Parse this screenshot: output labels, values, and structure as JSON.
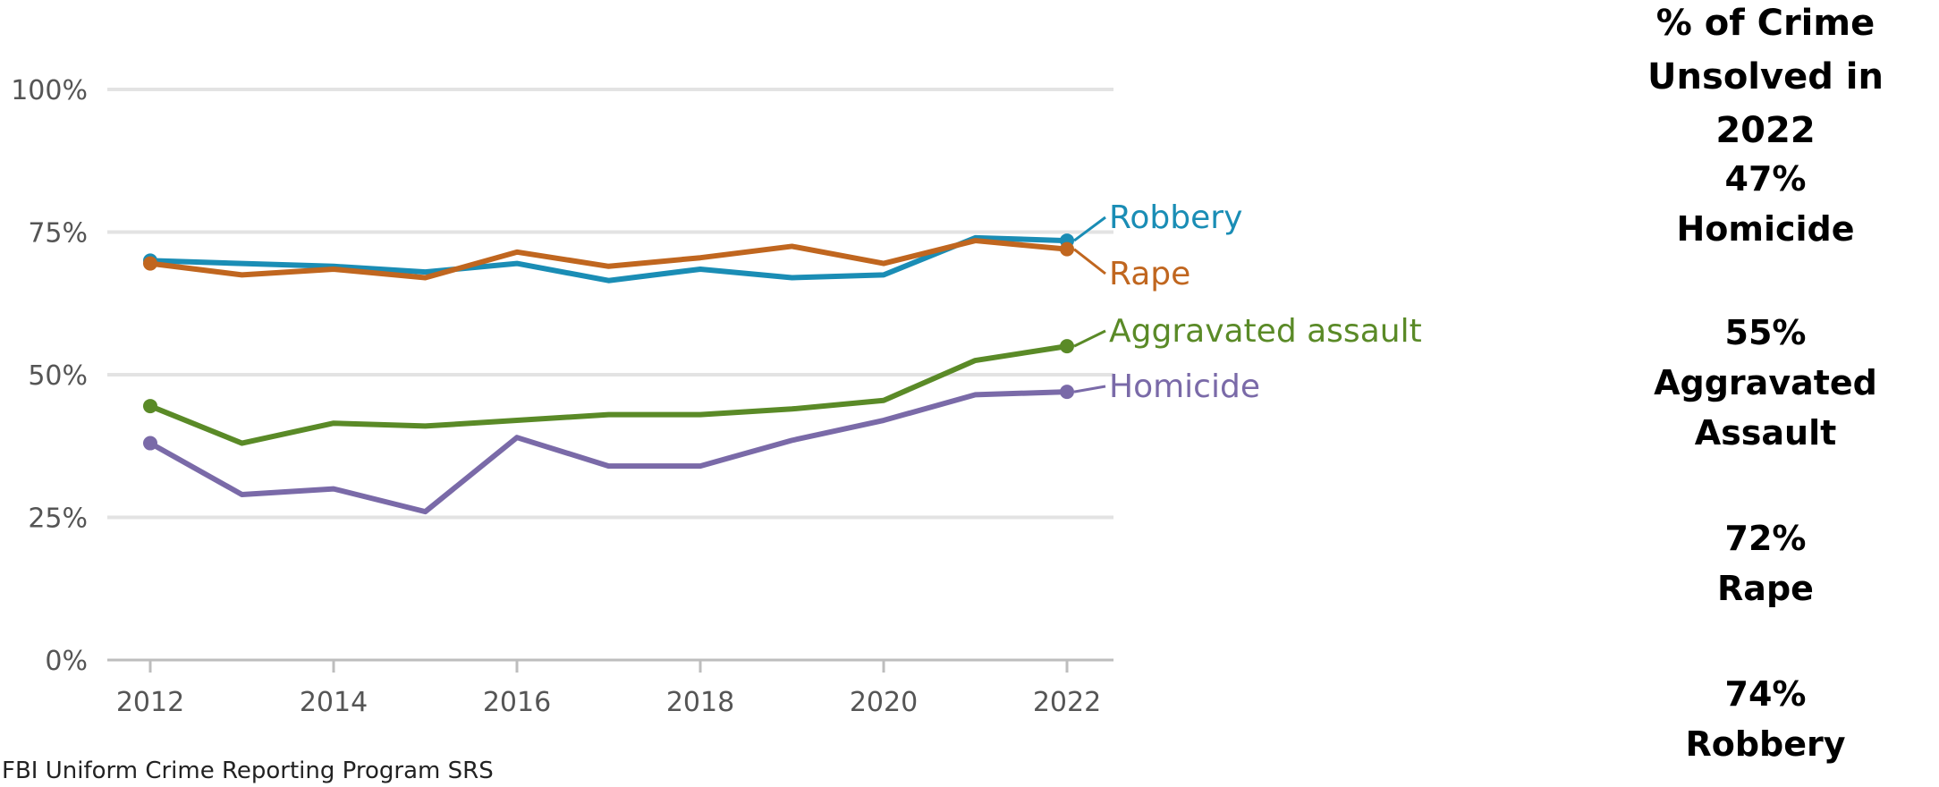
{
  "chart_data": {
    "type": "line",
    "title": "",
    "xlabel": "",
    "ylabel": "",
    "x": [
      2012,
      2013,
      2014,
      2015,
      2016,
      2017,
      2018,
      2019,
      2020,
      2021,
      2022
    ],
    "x_ticks": [
      2012,
      2014,
      2016,
      2018,
      2020,
      2022
    ],
    "xlim": [
      2012,
      2022
    ],
    "ylim": [
      0,
      100
    ],
    "y_ticks": [
      0,
      25,
      50,
      75,
      100
    ],
    "y_tick_labels": [
      "0%",
      "25%",
      "50%",
      "75%",
      "100%"
    ],
    "grid": "horizontal",
    "series": [
      {
        "name": "Robbery",
        "color": "#1a8db5",
        "values": [
          70,
          69.5,
          69,
          68,
          69.5,
          66.5,
          68.5,
          67,
          67.5,
          74,
          73.5
        ]
      },
      {
        "name": "Rape",
        "color": "#c0661f",
        "values": [
          69.5,
          67.5,
          68.5,
          67,
          71.5,
          69,
          70.5,
          72.5,
          69.5,
          73.5,
          72
        ]
      },
      {
        "name": "Aggravated assault",
        "color": "#5a8a27",
        "values": [
          44.5,
          38,
          41.5,
          41,
          42,
          43,
          43,
          44,
          45.5,
          52.5,
          55
        ]
      },
      {
        "name": "Homicide",
        "color": "#7a6aa8",
        "values": [
          38,
          29,
          30,
          26,
          39,
          34,
          34,
          38.5,
          42,
          46.5,
          47
        ]
      }
    ]
  },
  "source": "FBI Uniform Crime Reporting Program SRS",
  "panel": {
    "title_line1": "% of Crime",
    "title_line2": "Unsolved in 2022",
    "stats": [
      {
        "pct": "47%",
        "label_line1": "Homicide",
        "label_line2": ""
      },
      {
        "pct": "55%",
        "label_line1": "Aggravated",
        "label_line2": "Assault"
      },
      {
        "pct": "72%",
        "label_line1": "Rape",
        "label_line2": ""
      },
      {
        "pct": "74%",
        "label_line1": "Robbery",
        "label_line2": ""
      }
    ]
  }
}
